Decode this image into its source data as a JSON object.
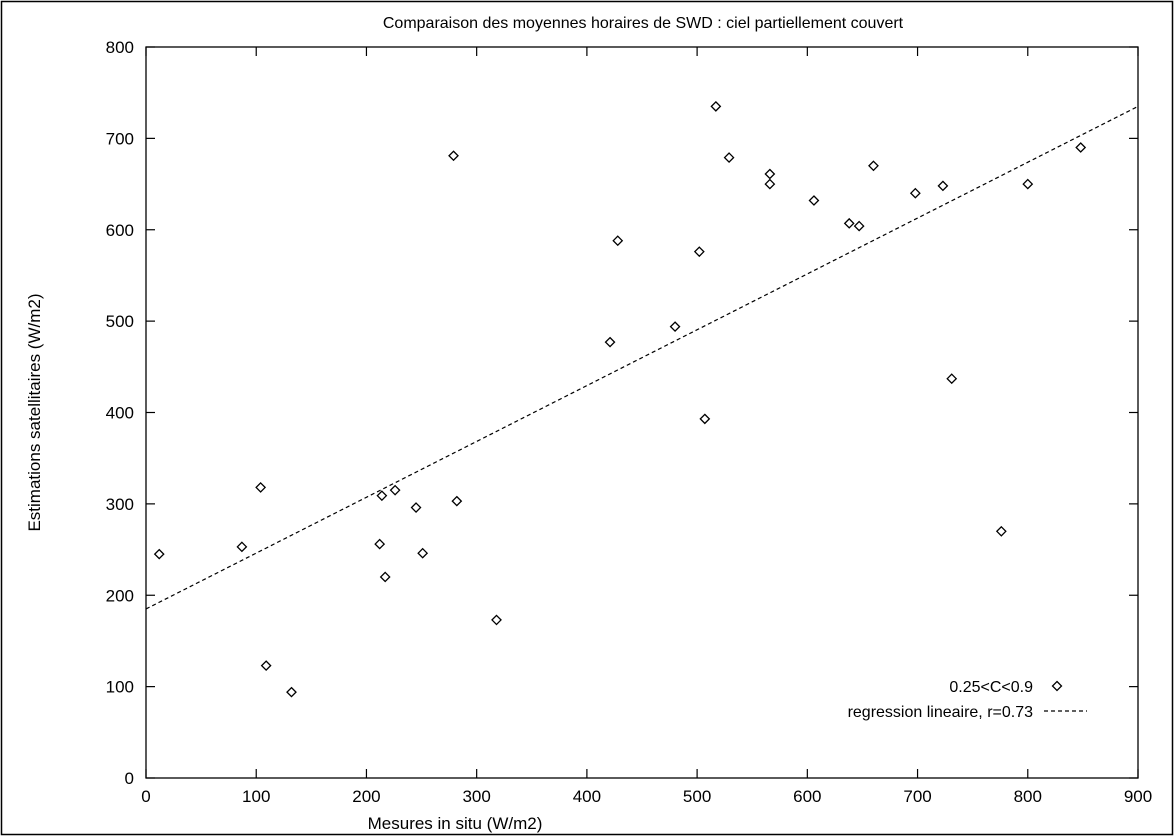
{
  "chart_data": {
    "type": "scatter",
    "title": "Comparaison des moyennes horaires de SWD : ciel partiellement couvert",
    "xlabel": "Mesures in situ (W/m2)",
    "ylabel": "Estimations satellitaires (W/m2)",
    "xlim": [
      0,
      900
    ],
    "ylim": [
      0,
      800
    ],
    "xticks": [
      0,
      100,
      200,
      300,
      400,
      500,
      600,
      700,
      800,
      900
    ],
    "yticks": [
      0,
      100,
      200,
      300,
      400,
      500,
      600,
      700,
      800
    ],
    "grid": false,
    "legend_position": "bottom-right",
    "series": [
      {
        "name": "0.25<C<0.9",
        "marker": "diamond",
        "color": "#000000",
        "points": [
          [
            12,
            245
          ],
          [
            87,
            253
          ],
          [
            104,
            318
          ],
          [
            109,
            123
          ],
          [
            132,
            94
          ],
          [
            212,
            256
          ],
          [
            214,
            309
          ],
          [
            217,
            220
          ],
          [
            226,
            315
          ],
          [
            245,
            296
          ],
          [
            251,
            246
          ],
          [
            279,
            681
          ],
          [
            282,
            303
          ],
          [
            318,
            173
          ],
          [
            421,
            477
          ],
          [
            428,
            588
          ],
          [
            480,
            494
          ],
          [
            502,
            576
          ],
          [
            507,
            393
          ],
          [
            517,
            735
          ],
          [
            529,
            679
          ],
          [
            566,
            661
          ],
          [
            566,
            650
          ],
          [
            606,
            632
          ],
          [
            638,
            607
          ],
          [
            647,
            604
          ],
          [
            660,
            670
          ],
          [
            698,
            640
          ],
          [
            723,
            648
          ],
          [
            731,
            437
          ],
          [
            776,
            270
          ],
          [
            800,
            650
          ],
          [
            848,
            690
          ]
        ]
      },
      {
        "name": "regression lineaire, r=0.73",
        "line_style": "dashed",
        "color": "#000000",
        "points": [
          [
            0,
            185
          ],
          [
            900,
            735
          ]
        ]
      }
    ]
  }
}
